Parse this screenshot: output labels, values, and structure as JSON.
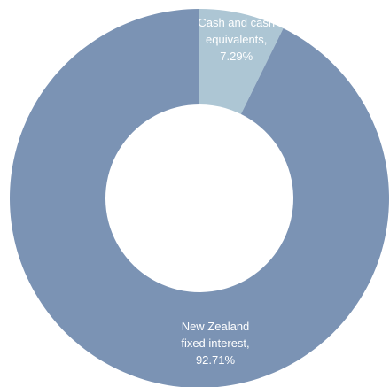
{
  "chart_data": {
    "type": "pie",
    "donut": true,
    "title": "",
    "slices": [
      {
        "name": "Cash and cash equivalents",
        "value": 7.29,
        "label_lines": [
          "Cash and cash",
          "equivalents,",
          "7.29%"
        ],
        "color": "#adc6d4"
      },
      {
        "name": "New Zealand fixed interest",
        "value": 92.71,
        "label_lines": [
          "New Zealand",
          "fixed interest,",
          "92.71%"
        ],
        "color": "#7b93b4"
      }
    ]
  }
}
